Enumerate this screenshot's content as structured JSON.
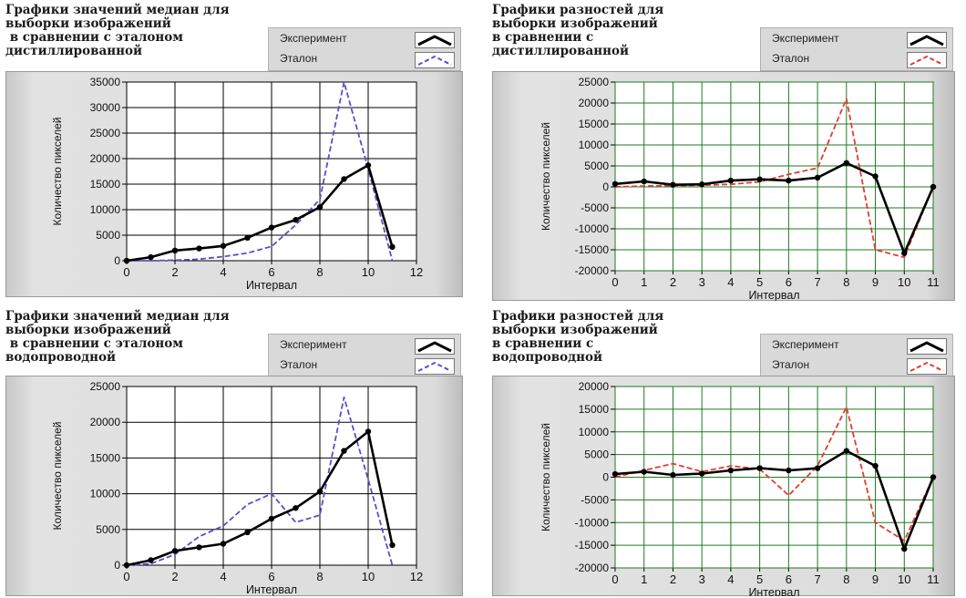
{
  "legend": {
    "experiment": "Эксперимент",
    "reference": "Эталон"
  },
  "chart_data": [
    {
      "type": "line",
      "title": "Графики значений медиан для\nвыборки изображений\n в сравнении с эталоном\nдистиллированной",
      "xlabel": "Интервал",
      "ylabel": "Количество пикселей",
      "xlim": [
        0,
        12
      ],
      "ylim": [
        0,
        35000
      ],
      "x_ticks": [
        0,
        2,
        4,
        6,
        8,
        10,
        12
      ],
      "y_ticks": [
        0,
        5000,
        10000,
        15000,
        20000,
        25000,
        30000,
        35000
      ],
      "grid": "black",
      "series": [
        {
          "name": "Эксперимент",
          "color": "#000000",
          "style": "solid-markers",
          "x": [
            0,
            1,
            2,
            3,
            4,
            5,
            6,
            7,
            8,
            9,
            10,
            11
          ],
          "y": [
            0,
            700,
            2000,
            2400,
            2900,
            4500,
            6500,
            8000,
            10500,
            16000,
            18700,
            2700
          ]
        },
        {
          "name": "Эталон",
          "color": "#5b4fc7",
          "style": "dashed",
          "x": [
            0,
            1,
            2,
            3,
            4,
            5,
            6,
            7,
            8,
            9,
            10,
            11
          ],
          "y": [
            0,
            0,
            100,
            300,
            800,
            1500,
            2800,
            7000,
            12000,
            35000,
            18000,
            0
          ]
        }
      ]
    },
    {
      "type": "line",
      "title": "Графики разностей для\nвыборки изображений\nв сравнении с\nдистиллированной",
      "xlabel": "Интервал",
      "ylabel": "Количество пикселей",
      "xlim": [
        0,
        11
      ],
      "ylim": [
        -20000,
        25000
      ],
      "x_ticks": [
        0,
        1,
        2,
        3,
        4,
        5,
        6,
        7,
        8,
        9,
        10,
        11
      ],
      "y_ticks": [
        -20000,
        -15000,
        -10000,
        -5000,
        0,
        5000,
        10000,
        15000,
        20000,
        25000
      ],
      "grid": "green",
      "series": [
        {
          "name": "Эксперимент",
          "color": "#000000",
          "style": "solid-markers",
          "x": [
            0,
            1,
            2,
            3,
            4,
            5,
            6,
            7,
            8,
            9,
            10,
            11
          ],
          "y": [
            700,
            1300,
            500,
            600,
            1500,
            1800,
            1500,
            2200,
            5700,
            2500,
            -15800,
            0
          ]
        },
        {
          "name": "Эталон",
          "color": "#e03c31",
          "style": "dashed",
          "x": [
            0,
            1,
            2,
            3,
            4,
            5,
            6,
            7,
            8,
            9,
            10,
            11
          ],
          "y": [
            0,
            200,
            300,
            400,
            600,
            1200,
            3000,
            4500,
            21000,
            -15000,
            -16800,
            0
          ]
        }
      ]
    },
    {
      "type": "line",
      "title": "Графики значений медиан для\nвыборки изображений\n в сравнении с эталоном\nводопроводной",
      "xlabel": "Интервал",
      "ylabel": "Количество пикселей",
      "xlim": [
        0,
        12
      ],
      "ylim": [
        0,
        25000
      ],
      "x_ticks": [
        0,
        2,
        4,
        6,
        8,
        10,
        12
      ],
      "y_ticks": [
        0,
        5000,
        10000,
        15000,
        20000,
        25000
      ],
      "grid": "black",
      "series": [
        {
          "name": "Эксперимент",
          "color": "#000000",
          "style": "solid-markers",
          "x": [
            0,
            1,
            2,
            3,
            4,
            5,
            6,
            7,
            8,
            9,
            10,
            11
          ],
          "y": [
            0,
            700,
            2000,
            2500,
            3000,
            4600,
            6500,
            8000,
            10300,
            16000,
            18700,
            2800
          ]
        },
        {
          "name": "Эталон",
          "color": "#5b4fc7",
          "style": "dashed",
          "x": [
            0,
            1,
            2,
            3,
            4,
            5,
            6,
            7,
            8,
            9,
            10,
            11
          ],
          "y": [
            0,
            200,
            1500,
            4000,
            5500,
            8500,
            10000,
            6000,
            7000,
            23500,
            12000,
            0
          ]
        }
      ]
    },
    {
      "type": "line",
      "title": "Графики разностей для\nвыборки изображений\nв сравнении с\nводопроводной",
      "xlabel": "Интервал",
      "ylabel": "Количество пикселей",
      "xlim": [
        0,
        11
      ],
      "ylim": [
        -20000,
        20000
      ],
      "x_ticks": [
        0,
        1,
        2,
        3,
        4,
        5,
        6,
        7,
        8,
        9,
        10,
        11
      ],
      "y_ticks": [
        -20000,
        -15000,
        -10000,
        -5000,
        0,
        5000,
        10000,
        15000,
        20000
      ],
      "grid": "green",
      "series": [
        {
          "name": "Эксперимент",
          "color": "#000000",
          "style": "solid-markers",
          "x": [
            0,
            1,
            2,
            3,
            4,
            5,
            6,
            7,
            8,
            9,
            10,
            11
          ],
          "y": [
            700,
            1200,
            500,
            800,
            1500,
            2000,
            1500,
            2000,
            5800,
            2500,
            -15800,
            0
          ]
        },
        {
          "name": "Эталон",
          "color": "#e03c31",
          "style": "dashed",
          "x": [
            0,
            1,
            2,
            3,
            4,
            5,
            6,
            7,
            8,
            9,
            10,
            11
          ],
          "y": [
            0,
            1500,
            3000,
            1200,
            2500,
            1800,
            -4000,
            2500,
            15500,
            -10000,
            -14000,
            0
          ]
        }
      ]
    }
  ]
}
